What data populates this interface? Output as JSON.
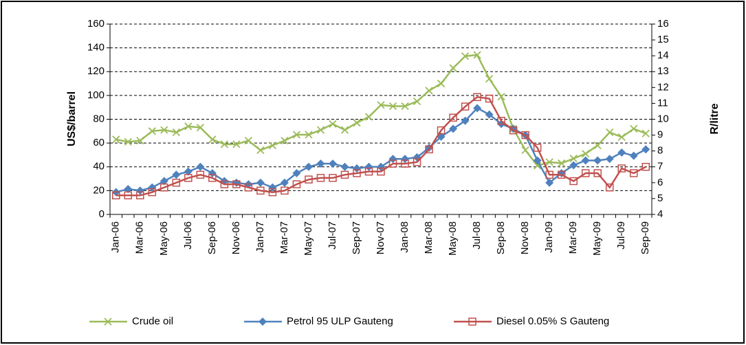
{
  "chart_data": {
    "type": "line",
    "y_label": "US$/barrel",
    "y2_label": "R/litre",
    "categories": [
      "Jan-06",
      null,
      "Mar-06",
      null,
      "May-06",
      null,
      "Jul-06",
      null,
      "Sep-06",
      null,
      "Nov-06",
      null,
      "Jan-07",
      null,
      "Mar-07",
      null,
      "May-07",
      null,
      "Jul-07",
      null,
      "Sep-07",
      null,
      "Nov-07",
      null,
      "Jan-08",
      null,
      "Mar-08",
      null,
      "May-08",
      null,
      "Jul-08",
      null,
      "Sep-08",
      null,
      "Nov-08",
      null,
      "Jan-09",
      null,
      "Mar-09",
      null,
      "May-09",
      null,
      "Jul-09",
      null,
      "Sep-09"
    ],
    "series": [
      {
        "name": "Crude oil",
        "color": "#9bbb59",
        "marker": "x",
        "axis": "y",
        "values": [
          63,
          61,
          62,
          70,
          71,
          69,
          74,
          73,
          63,
          59,
          59,
          62,
          54,
          58,
          62,
          67,
          67,
          71,
          76,
          71,
          77,
          82,
          92,
          91,
          91,
          95,
          104,
          110,
          123,
          133,
          134,
          114,
          99,
          72,
          54,
          41,
          44,
          43,
          47,
          51,
          58,
          69,
          65,
          72,
          68
        ]
      },
      {
        "name": "Petrol 95 ULP Gauteng",
        "color": "#4f81bd",
        "marker": "diamond",
        "axis": "y2",
        "values": [
          5.4,
          5.6,
          5.5,
          5.7,
          6.1,
          6.5,
          6.7,
          7.0,
          6.6,
          6.1,
          6.0,
          5.9,
          6.0,
          5.7,
          6.0,
          6.6,
          7.0,
          7.2,
          7.2,
          7.0,
          6.9,
          7.0,
          7.0,
          7.5,
          7.5,
          7.6,
          8.2,
          8.9,
          9.4,
          9.9,
          10.7,
          10.3,
          9.7,
          9.4,
          9.0,
          7.4,
          6.0,
          6.6,
          7.1,
          7.4,
          7.4,
          7.5,
          7.9,
          7.7,
          8.1
        ]
      },
      {
        "name": "Diesel 0.05% S Gauteng",
        "color": "#c0504d",
        "marker": "square",
        "axis": "y2",
        "values": [
          5.2,
          5.2,
          5.2,
          5.4,
          5.7,
          6.0,
          6.3,
          6.5,
          6.3,
          5.9,
          5.9,
          5.7,
          5.5,
          5.4,
          5.5,
          5.9,
          6.2,
          6.3,
          6.3,
          6.5,
          6.6,
          6.7,
          6.7,
          7.2,
          7.2,
          7.3,
          8.1,
          9.3,
          10.1,
          10.8,
          11.4,
          11.3,
          9.9,
          9.3,
          9.0,
          8.2,
          6.5,
          6.5,
          6.1,
          6.6,
          6.6,
          5.7,
          6.9,
          6.6,
          7.0
        ]
      }
    ],
    "ylim": [
      0,
      160
    ],
    "yticks": [
      0,
      20,
      40,
      60,
      80,
      100,
      120,
      140,
      160
    ],
    "y2lim": [
      4,
      16
    ],
    "y2ticks": [
      4,
      5,
      6,
      7,
      8,
      9,
      10,
      11,
      12,
      13,
      14,
      15,
      16
    ],
    "grid": true,
    "legend": "bottom"
  }
}
